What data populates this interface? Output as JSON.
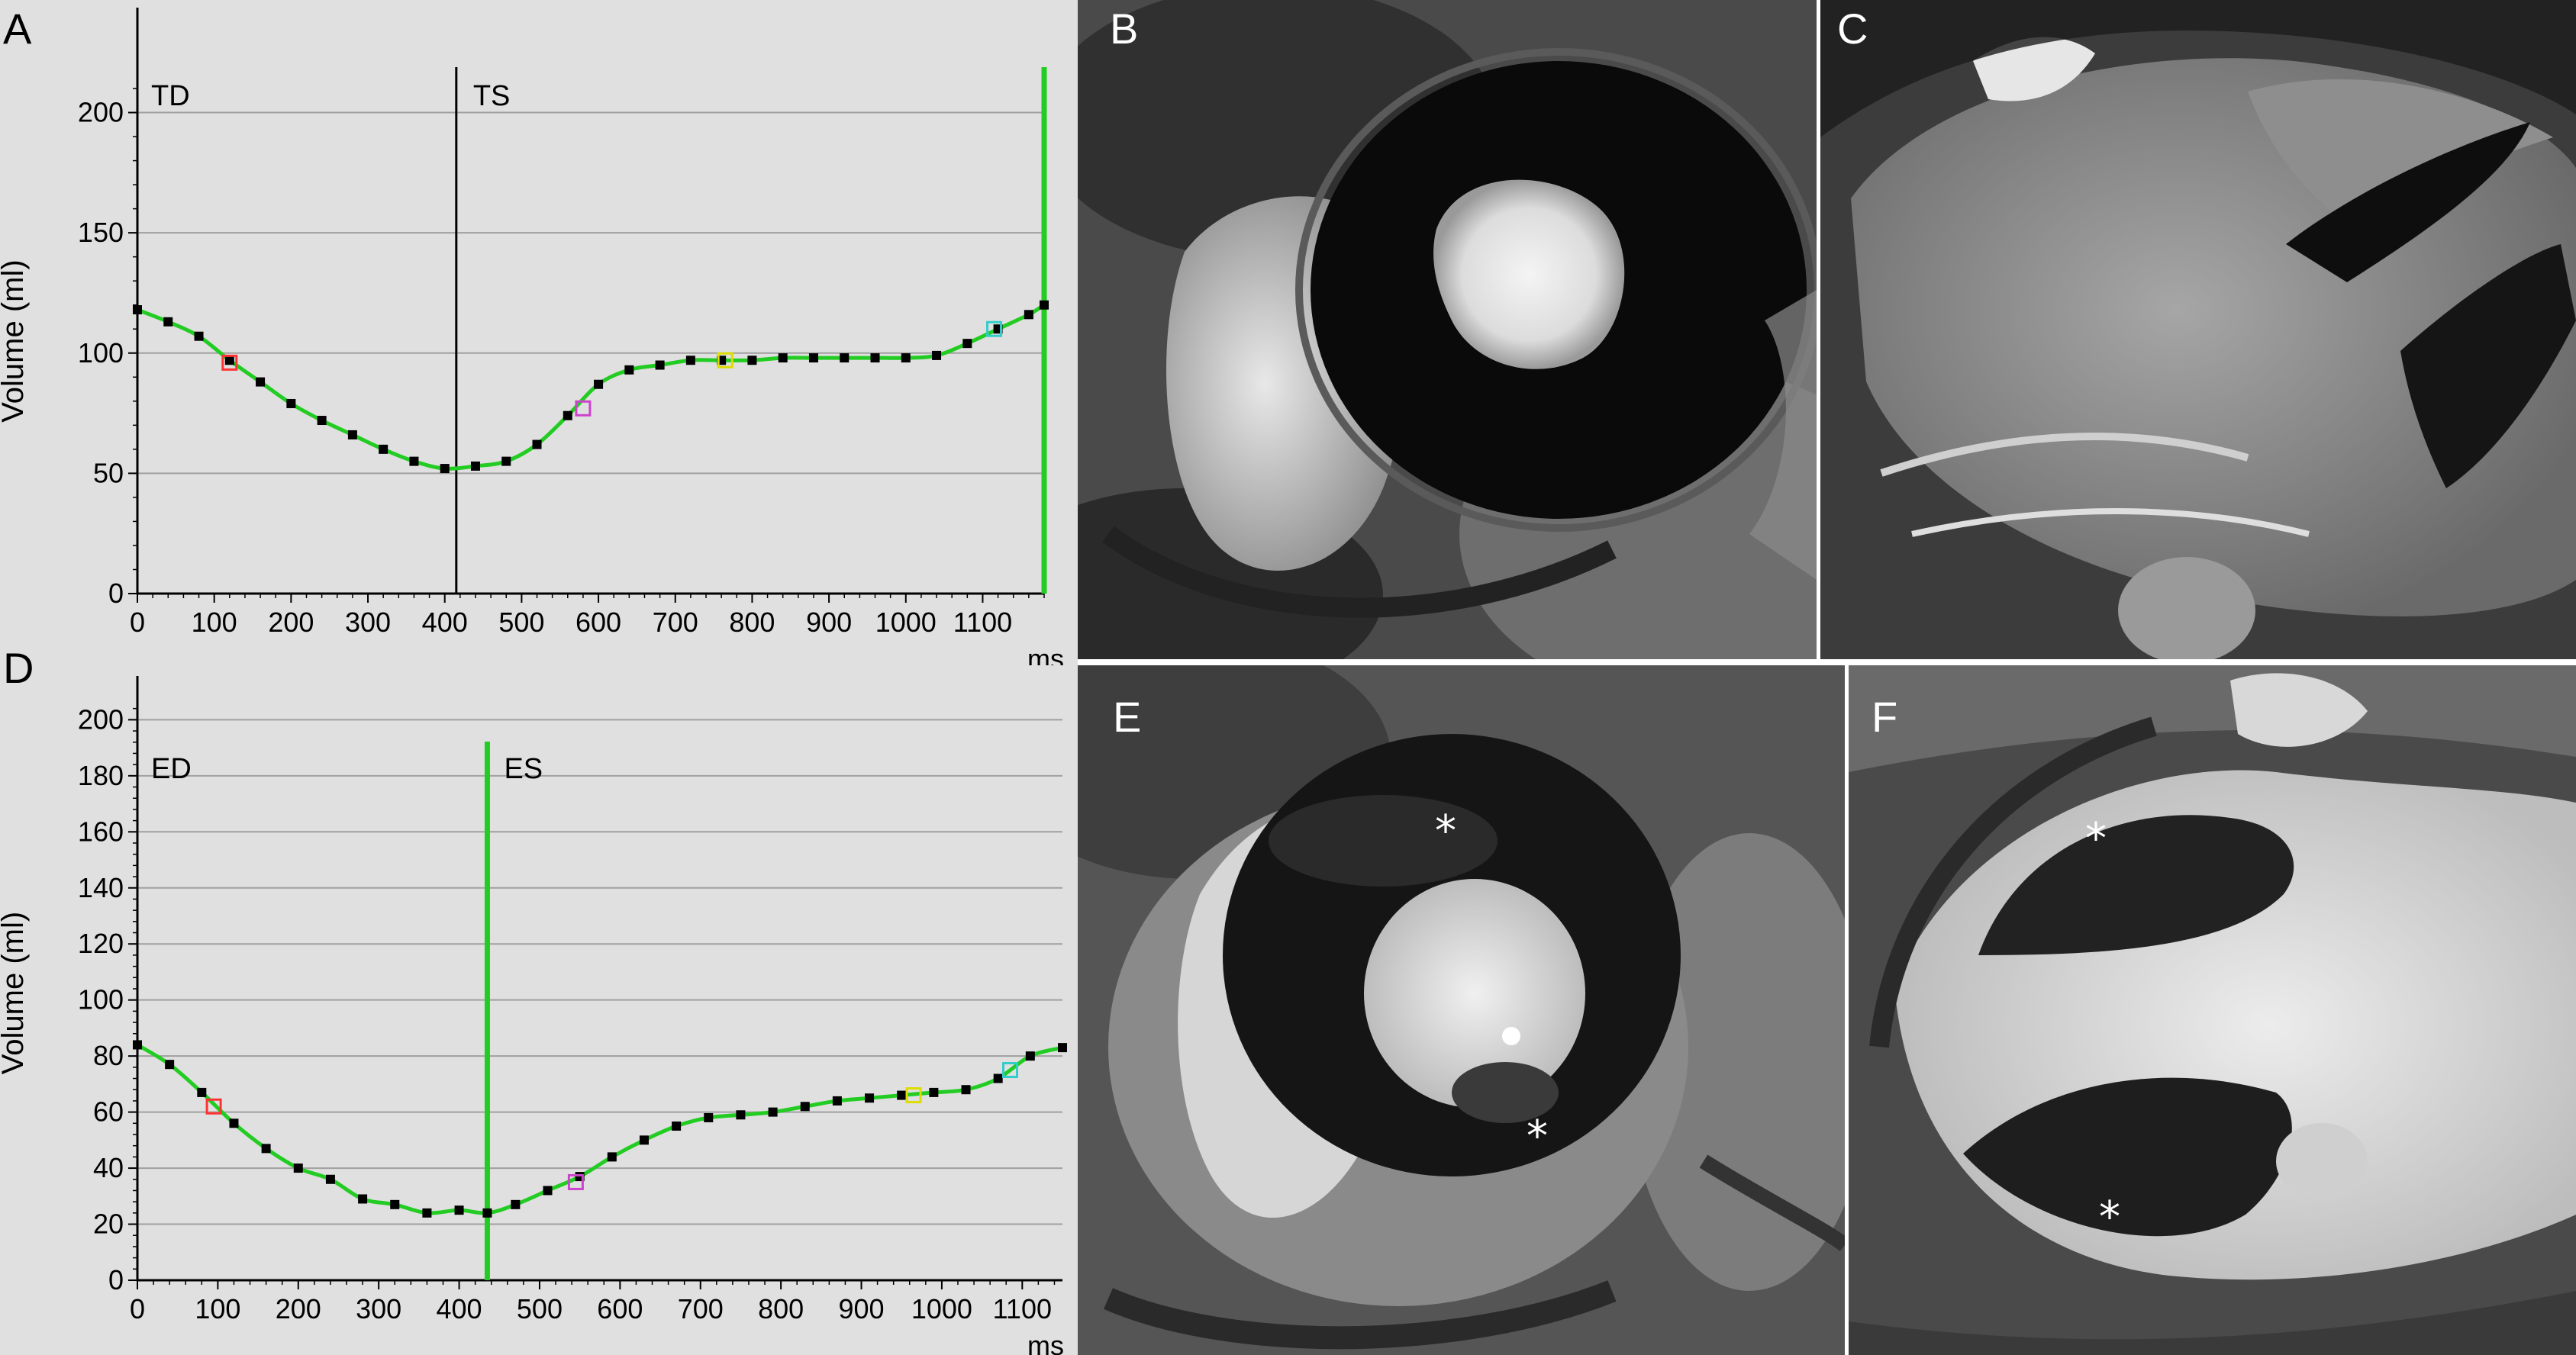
{
  "panel_labels": {
    "a": "A",
    "b": "B",
    "c": "C",
    "d": "D",
    "e": "E",
    "f": "F"
  },
  "mri_annotations": {
    "asterisk": "*"
  },
  "colors": {
    "curve": "#22cc22",
    "phase_line_black": "#000000",
    "phase_line_green": "#22cc22",
    "plot_bg": "#e0e0e0",
    "grid": "#a0a0a0"
  },
  "chart_data": [
    {
      "type": "line",
      "panel": "A",
      "ylabel": "Volume (ml)",
      "xlabel": "ms",
      "xlim": [
        0,
        1180
      ],
      "ylim": [
        0,
        210
      ],
      "yticks": [
        0,
        50,
        100,
        150,
        200
      ],
      "xticks": [
        0,
        100,
        200,
        300,
        400,
        500,
        600,
        700,
        800,
        900,
        1000,
        1100
      ],
      "grid": true,
      "annotations": [
        {
          "text": "TD",
          "x": 0
        },
        {
          "text": "TS",
          "x": 415
        }
      ],
      "phase_lines": [
        {
          "x": 415,
          "color": "#000000"
        },
        {
          "x": 1180,
          "color": "#22cc22"
        }
      ],
      "series": [
        {
          "x": [
            0,
            40,
            80,
            120,
            160,
            200,
            240,
            280,
            320,
            360,
            400,
            440,
            480,
            520,
            560,
            600,
            640,
            680,
            720,
            760,
            800,
            840,
            880,
            920,
            960,
            1000,
            1040,
            1080,
            1120,
            1160,
            1180
          ],
          "y": [
            118,
            113,
            107,
            97,
            88,
            79,
            72,
            66,
            60,
            55,
            52,
            53,
            55,
            62,
            74,
            87,
            93,
            95,
            97,
            97,
            97,
            98,
            98,
            98,
            98,
            98,
            99,
            104,
            110,
            116,
            120
          ]
        }
      ],
      "markers": [
        {
          "x": 120,
          "y": 96,
          "color": "#ff3333"
        },
        {
          "x": 580,
          "y": 77,
          "color": "#cc44cc"
        },
        {
          "x": 765,
          "y": 97,
          "color": "#dddd00"
        },
        {
          "x": 1115,
          "y": 110,
          "color": "#33cccc"
        }
      ]
    },
    {
      "type": "line",
      "panel": "D",
      "ylabel": "Volume (ml)",
      "xlabel": "ms",
      "xlim": [
        0,
        1150
      ],
      "ylim": [
        0,
        205
      ],
      "yticks": [
        0,
        20,
        40,
        60,
        80,
        100,
        120,
        140,
        160,
        180,
        200
      ],
      "xticks": [
        0,
        100,
        200,
        300,
        400,
        500,
        600,
        700,
        800,
        900,
        1000,
        1100
      ],
      "grid": true,
      "annotations": [
        {
          "text": "ED",
          "x": 0
        },
        {
          "text": "ES",
          "x": 435
        }
      ],
      "phase_lines": [
        {
          "x": 435,
          "color": "#22cc22"
        }
      ],
      "series": [
        {
          "x": [
            0,
            40,
            80,
            120,
            160,
            200,
            240,
            280,
            320,
            360,
            400,
            435,
            470,
            510,
            550,
            590,
            630,
            670,
            710,
            750,
            790,
            830,
            870,
            910,
            950,
            990,
            1030,
            1070,
            1110,
            1150
          ],
          "y": [
            84,
            77,
            67,
            56,
            47,
            40,
            36,
            29,
            27,
            24,
            25,
            24,
            27,
            32,
            37,
            44,
            50,
            55,
            58,
            59,
            60,
            62,
            64,
            65,
            66,
            67,
            68,
            72,
            80,
            83
          ]
        }
      ],
      "markers": [
        {
          "x": 95,
          "y": 62,
          "color": "#ff3333"
        },
        {
          "x": 545,
          "y": 35,
          "color": "#cc44cc"
        },
        {
          "x": 965,
          "y": 66,
          "color": "#dddd00"
        },
        {
          "x": 1085,
          "y": 75,
          "color": "#33cccc"
        }
      ]
    }
  ]
}
